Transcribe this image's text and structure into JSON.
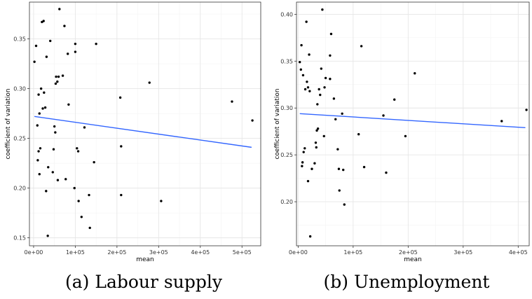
{
  "chart_data": [
    {
      "type": "scatter",
      "subplot": "(a)",
      "caption": "(a) Labour supply",
      "xlabel": "mean",
      "ylabel": "coefficient of variation",
      "xlim": [
        -10000,
        545000
      ],
      "ylim": [
        0.142,
        0.387
      ],
      "x_ticks": [
        0,
        100000,
        200000,
        300000,
        400000,
        500000
      ],
      "x_tick_labels": [
        "0e+00",
        "1e+05",
        "2e+05",
        "3e+05",
        "4e+05",
        "5e+05"
      ],
      "y_ticks": [
        0.15,
        0.2,
        0.25,
        0.3,
        0.35
      ],
      "y_tick_labels": [
        "0.15",
        "0.20",
        "0.25",
        "0.30",
        "0.35"
      ],
      "grid": true,
      "trend_line": {
        "x": [
          2000,
          523000
        ],
        "y": [
          0.272,
          0.241
        ],
        "color": "#3366FF"
      },
      "points": [
        {
          "x": 2000,
          "y": 0.327
        },
        {
          "x": 6000,
          "y": 0.343
        },
        {
          "x": 9000,
          "y": 0.263
        },
        {
          "x": 10000,
          "y": 0.228
        },
        {
          "x": 12000,
          "y": 0.237
        },
        {
          "x": 12000,
          "y": 0.294
        },
        {
          "x": 14000,
          "y": 0.275
        },
        {
          "x": 14000,
          "y": 0.214
        },
        {
          "x": 16000,
          "y": 0.24
        },
        {
          "x": 18000,
          "y": 0.3
        },
        {
          "x": 20000,
          "y": 0.367
        },
        {
          "x": 22000,
          "y": 0.28
        },
        {
          "x": 24000,
          "y": 0.368
        },
        {
          "x": 25000,
          "y": 0.296
        },
        {
          "x": 28000,
          "y": 0.281
        },
        {
          "x": 30000,
          "y": 0.197
        },
        {
          "x": 31000,
          "y": 0.332
        },
        {
          "x": 34000,
          "y": 0.152
        },
        {
          "x": 35000,
          "y": 0.221
        },
        {
          "x": 40000,
          "y": 0.348
        },
        {
          "x": 46000,
          "y": 0.216
        },
        {
          "x": 48000,
          "y": 0.239
        },
        {
          "x": 50000,
          "y": 0.262
        },
        {
          "x": 52000,
          "y": 0.256
        },
        {
          "x": 53000,
          "y": 0.305
        },
        {
          "x": 54000,
          "y": 0.312
        },
        {
          "x": 57000,
          "y": 0.307
        },
        {
          "x": 58000,
          "y": 0.208
        },
        {
          "x": 60000,
          "y": 0.312
        },
        {
          "x": 62000,
          "y": 0.38
        },
        {
          "x": 70000,
          "y": 0.313
        },
        {
          "x": 74000,
          "y": 0.363
        },
        {
          "x": 77000,
          "y": 0.209
        },
        {
          "x": 82000,
          "y": 0.335
        },
        {
          "x": 84000,
          "y": 0.284
        },
        {
          "x": 98000,
          "y": 0.2
        },
        {
          "x": 100000,
          "y": 0.337
        },
        {
          "x": 100000,
          "y": 0.345
        },
        {
          "x": 104000,
          "y": 0.24
        },
        {
          "x": 107000,
          "y": 0.237
        },
        {
          "x": 108000,
          "y": 0.187
        },
        {
          "x": 115000,
          "y": 0.171
        },
        {
          "x": 122000,
          "y": 0.261
        },
        {
          "x": 133000,
          "y": 0.193
        },
        {
          "x": 135000,
          "y": 0.16
        },
        {
          "x": 145000,
          "y": 0.226
        },
        {
          "x": 150000,
          "y": 0.345
        },
        {
          "x": 208000,
          "y": 0.291
        },
        {
          "x": 210000,
          "y": 0.242
        },
        {
          "x": 210000,
          "y": 0.193
        },
        {
          "x": 278000,
          "y": 0.306
        },
        {
          "x": 306000,
          "y": 0.187
        },
        {
          "x": 476000,
          "y": 0.287
        },
        {
          "x": 525000,
          "y": 0.268
        }
      ]
    },
    {
      "type": "scatter",
      "subplot": "(b)",
      "caption": "(b) Unemployment",
      "xlabel": "mean",
      "ylabel": "coefficient of variation",
      "xlim": [
        -3000,
        420000
      ],
      "ylim": [
        0.153,
        0.413
      ],
      "x_ticks": [
        0,
        100000,
        200000,
        300000,
        400000
      ],
      "x_tick_labels": [
        "0e+00",
        "1e+05",
        "2e+05",
        "3e+05",
        "4e+05"
      ],
      "y_ticks": [
        0.2,
        0.25,
        0.3,
        0.35,
        0.4
      ],
      "y_tick_labels": [
        "0.20",
        "0.25",
        "0.30",
        "0.35",
        "0.40"
      ],
      "grid": true,
      "trend_line": {
        "x": [
          3000,
          413000
        ],
        "y": [
          0.294,
          0.279
        ],
        "color": "#3366FF"
      },
      "points": [
        {
          "x": 3000,
          "y": 0.349
        },
        {
          "x": 5000,
          "y": 0.341
        },
        {
          "x": 6000,
          "y": 0.367
        },
        {
          "x": 7000,
          "y": 0.238
        },
        {
          "x": 8000,
          "y": 0.242
        },
        {
          "x": 9000,
          "y": 0.335
        },
        {
          "x": 10000,
          "y": 0.253
        },
        {
          "x": 12000,
          "y": 0.257
        },
        {
          "x": 13000,
          "y": 0.32
        },
        {
          "x": 15000,
          "y": 0.392
        },
        {
          "x": 16000,
          "y": 0.328
        },
        {
          "x": 18000,
          "y": 0.222
        },
        {
          "x": 18000,
          "y": 0.322
        },
        {
          "x": 20000,
          "y": 0.357
        },
        {
          "x": 21000,
          "y": 0.318
        },
        {
          "x": 22000,
          "y": 0.163
        },
        {
          "x": 25000,
          "y": 0.235
        },
        {
          "x": 30000,
          "y": 0.241
        },
        {
          "x": 32000,
          "y": 0.263
        },
        {
          "x": 33000,
          "y": 0.258
        },
        {
          "x": 34000,
          "y": 0.276
        },
        {
          "x": 35000,
          "y": 0.304
        },
        {
          "x": 36000,
          "y": 0.278
        },
        {
          "x": 38000,
          "y": 0.32
        },
        {
          "x": 40000,
          "y": 0.314
        },
        {
          "x": 42000,
          "y": 0.342
        },
        {
          "x": 44000,
          "y": 0.405
        },
        {
          "x": 47000,
          "y": 0.27
        },
        {
          "x": 48000,
          "y": 0.322
        },
        {
          "x": 50000,
          "y": 0.332
        },
        {
          "x": 58000,
          "y": 0.356
        },
        {
          "x": 58000,
          "y": 0.331
        },
        {
          "x": 60000,
          "y": 0.379
        },
        {
          "x": 65000,
          "y": 0.31
        },
        {
          "x": 68000,
          "y": 0.288
        },
        {
          "x": 72000,
          "y": 0.256
        },
        {
          "x": 74000,
          "y": 0.235
        },
        {
          "x": 75000,
          "y": 0.212
        },
        {
          "x": 80000,
          "y": 0.294
        },
        {
          "x": 82000,
          "y": 0.234
        },
        {
          "x": 84000,
          "y": 0.197
        },
        {
          "x": 110000,
          "y": 0.272
        },
        {
          "x": 115000,
          "y": 0.366
        },
        {
          "x": 120000,
          "y": 0.237
        },
        {
          "x": 155000,
          "y": 0.292
        },
        {
          "x": 160000,
          "y": 0.231
        },
        {
          "x": 175000,
          "y": 0.309
        },
        {
          "x": 195000,
          "y": 0.27
        },
        {
          "x": 212000,
          "y": 0.337
        },
        {
          "x": 370000,
          "y": 0.286
        },
        {
          "x": 415000,
          "y": 0.298
        }
      ]
    }
  ]
}
